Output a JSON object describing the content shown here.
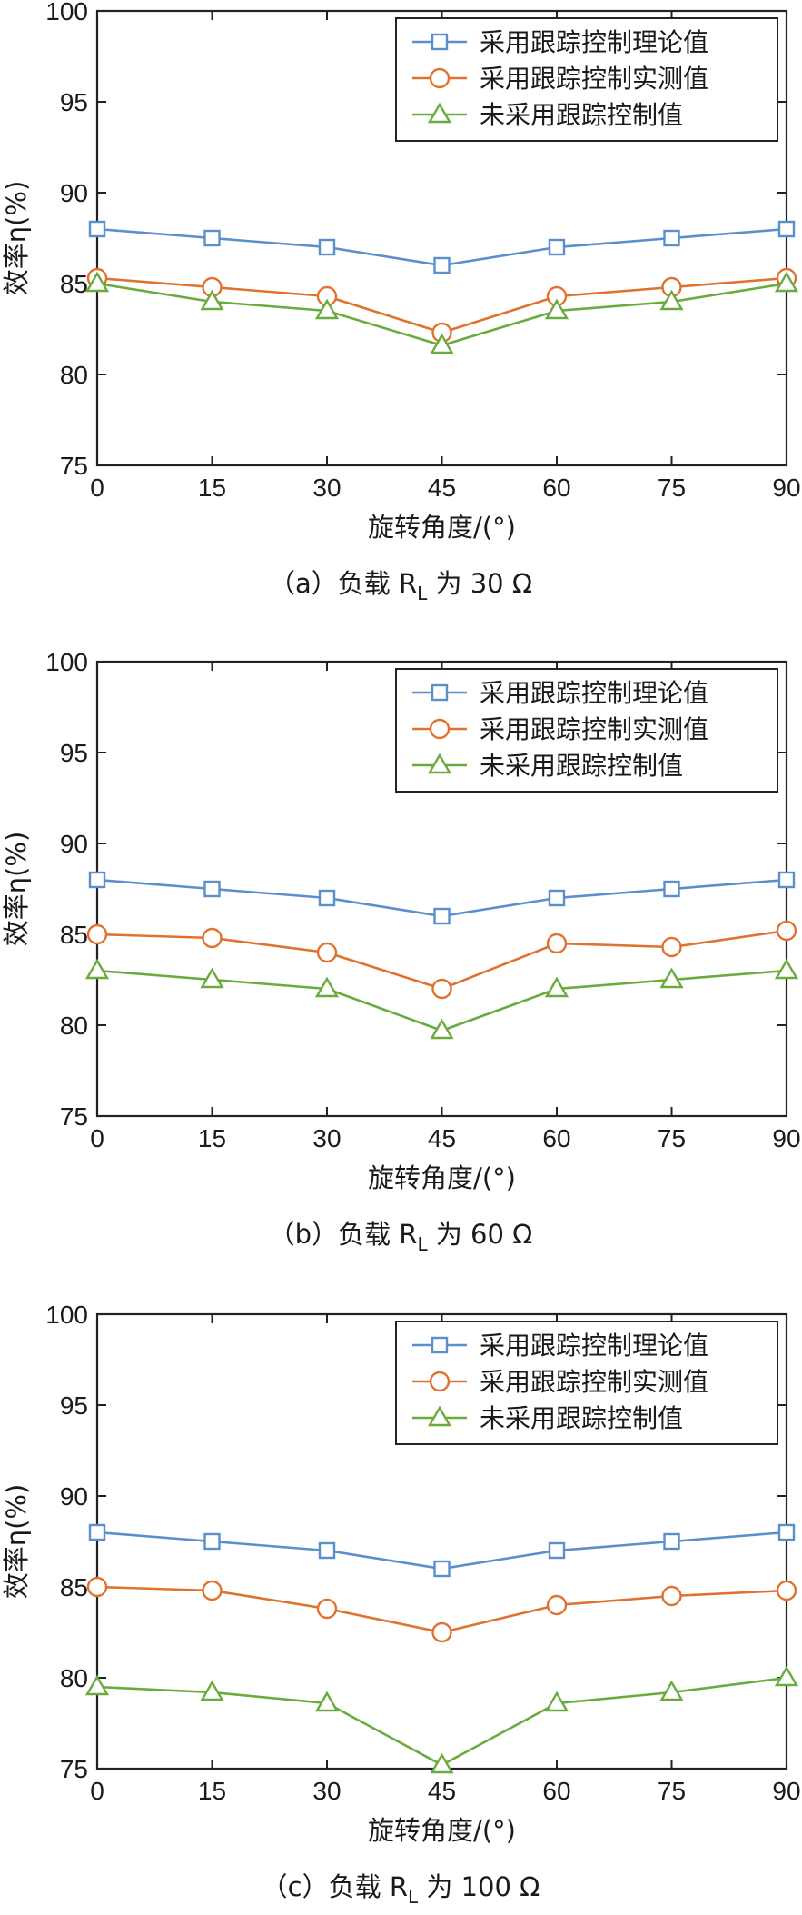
{
  "colors": {
    "theory": "#5b8fcc",
    "measured_tracking": "#e0722f",
    "no_tracking": "#6aab3e"
  },
  "chart_data": [
    {
      "type": "line",
      "caption": "（a）负载 R",
      "caption_sub": "L",
      "caption_tail": " 为 30 Ω",
      "xlabel": "旋转角度/(°)",
      "ylabel": "效率η(%)",
      "x": [
        0,
        15,
        30,
        45,
        60,
        75,
        90
      ],
      "xlim": [
        0,
        90
      ],
      "ylim": [
        75,
        100
      ],
      "yticks": [
        75,
        80,
        85,
        90,
        95,
        100
      ],
      "grid": false,
      "legend_position": "top-right",
      "series": [
        {
          "name": "采用跟踪控制理论值",
          "marker": "square",
          "color_key": "theory",
          "values": [
            88.0,
            87.5,
            87.0,
            86.0,
            87.0,
            87.5,
            88.0
          ]
        },
        {
          "name": "采用跟踪控制实测值",
          "marker": "circle",
          "color_key": "measured_tracking",
          "values": [
            85.3,
            84.8,
            84.3,
            82.3,
            84.3,
            84.8,
            85.3
          ]
        },
        {
          "name": "未采用跟踪控制值",
          "marker": "triangle",
          "color_key": "no_tracking",
          "values": [
            85.0,
            84.0,
            83.5,
            81.6,
            83.5,
            84.0,
            85.0
          ]
        }
      ]
    },
    {
      "type": "line",
      "caption": "（b）负载 R",
      "caption_sub": "L",
      "caption_tail": " 为 60 Ω",
      "xlabel": "旋转角度/(°)",
      "ylabel": "效率η(%)",
      "x": [
        0,
        15,
        30,
        45,
        60,
        75,
        90
      ],
      "xlim": [
        0,
        90
      ],
      "ylim": [
        75,
        100
      ],
      "yticks": [
        75,
        80,
        85,
        90,
        95,
        100
      ],
      "grid": false,
      "legend_position": "top-right",
      "series": [
        {
          "name": "采用跟踪控制理论值",
          "marker": "square",
          "color_key": "theory",
          "values": [
            88.0,
            87.5,
            87.0,
            86.0,
            87.0,
            87.5,
            88.0
          ]
        },
        {
          "name": "采用跟踪控制实测值",
          "marker": "circle",
          "color_key": "measured_tracking",
          "values": [
            85.0,
            84.8,
            84.0,
            82.0,
            84.5,
            84.3,
            85.2
          ]
        },
        {
          "name": "未采用跟踪控制值",
          "marker": "triangle",
          "color_key": "no_tracking",
          "values": [
            83.0,
            82.5,
            82.0,
            79.7,
            82.0,
            82.5,
            83.0
          ]
        }
      ]
    },
    {
      "type": "line",
      "caption": "（c）负载 R",
      "caption_sub": "L",
      "caption_tail": " 为 100 Ω",
      "xlabel": "旋转角度/(°)",
      "ylabel": "效率η(%)",
      "x": [
        0,
        15,
        30,
        45,
        60,
        75,
        90
      ],
      "xlim": [
        0,
        90
      ],
      "ylim": [
        75,
        100
      ],
      "yticks": [
        75,
        80,
        85,
        90,
        95,
        100
      ],
      "grid": false,
      "legend_position": "top-right",
      "series": [
        {
          "name": "采用跟踪控制理论值",
          "marker": "square",
          "color_key": "theory",
          "values": [
            88.0,
            87.5,
            87.0,
            86.0,
            87.0,
            87.5,
            88.0
          ]
        },
        {
          "name": "采用跟踪控制实测值",
          "marker": "circle",
          "color_key": "measured_tracking",
          "values": [
            85.0,
            84.8,
            83.8,
            82.5,
            84.0,
            84.5,
            84.8
          ]
        },
        {
          "name": "未采用跟踪控制值",
          "marker": "triangle",
          "color_key": "no_tracking",
          "values": [
            79.5,
            79.2,
            78.6,
            75.2,
            78.6,
            79.2,
            80.0
          ]
        }
      ]
    }
  ]
}
